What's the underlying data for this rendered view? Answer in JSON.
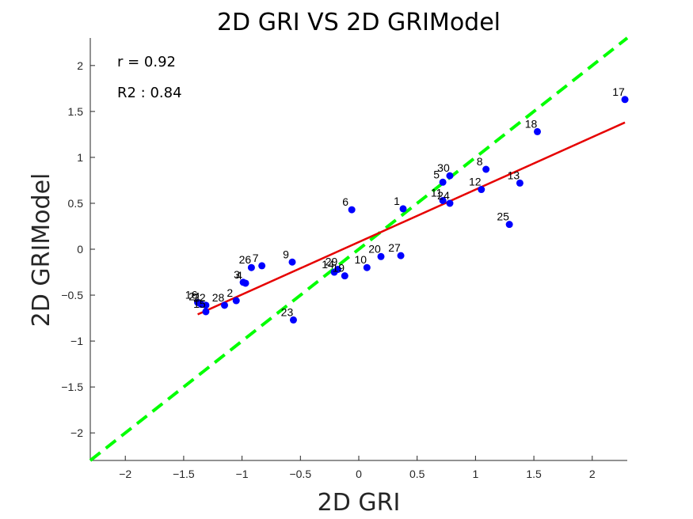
{
  "chart_data": {
    "type": "scatter",
    "title": "2D GRI VS 2D GRIModel",
    "xlabel": "2D GRI",
    "ylabel": "2D GRIModel",
    "xlim": [
      -2.3,
      2.3
    ],
    "ylim": [
      -2.3,
      2.3
    ],
    "xticks": [
      -2,
      -1.5,
      -1,
      -0.5,
      0,
      0.5,
      1,
      1.5,
      2
    ],
    "yticks": [
      -2,
      -1.5,
      -1,
      -0.5,
      0,
      0.5,
      1,
      1.5,
      2
    ],
    "xtick_labels": [
      "−2",
      "−1.5",
      "−1",
      "−0.5",
      "0",
      "0.5",
      "1",
      "1.5",
      "2"
    ],
    "ytick_labels": [
      "−2",
      "−1.5",
      "−1",
      "−0.5",
      "0",
      "0.5",
      "1",
      "1.5",
      "2"
    ],
    "grid": false,
    "annotations": [
      "r = 0.92",
      "R2 : 0.84"
    ],
    "point_color": "#0000ff",
    "points": [
      {
        "label": "1",
        "x": 0.38,
        "y": 0.44
      },
      {
        "label": "2",
        "x": -1.05,
        "y": -0.56
      },
      {
        "label": "3",
        "x": -0.99,
        "y": -0.36
      },
      {
        "label": "4",
        "x": -0.97,
        "y": -0.37
      },
      {
        "label": "5",
        "x": 0.72,
        "y": 0.73
      },
      {
        "label": "6",
        "x": -0.06,
        "y": 0.43
      },
      {
        "label": "7",
        "x": -0.83,
        "y": -0.18
      },
      {
        "label": "8",
        "x": 1.09,
        "y": 0.87
      },
      {
        "label": "9",
        "x": -0.57,
        "y": -0.14
      },
      {
        "label": "10",
        "x": 0.07,
        "y": -0.2
      },
      {
        "label": "11",
        "x": 0.72,
        "y": 0.53
      },
      {
        "label": "12",
        "x": 1.05,
        "y": 0.65
      },
      {
        "label": "13",
        "x": 1.38,
        "y": 0.72
      },
      {
        "label": "14",
        "x": -0.21,
        "y": -0.25
      },
      {
        "label": "15",
        "x": -1.31,
        "y": -0.68
      },
      {
        "label": "16",
        "x": -1.38,
        "y": -0.58
      },
      {
        "label": "17",
        "x": 2.28,
        "y": 1.63
      },
      {
        "label": "18",
        "x": 1.53,
        "y": 1.28
      },
      {
        "label": "19",
        "x": -0.12,
        "y": -0.29
      },
      {
        "label": "20",
        "x": 0.19,
        "y": -0.08
      },
      {
        "label": "21",
        "x": -1.35,
        "y": -0.6
      },
      {
        "label": "22",
        "x": -1.31,
        "y": -0.61
      },
      {
        "label": "23",
        "x": -0.56,
        "y": -0.77
      },
      {
        "label": "24",
        "x": 0.78,
        "y": 0.5
      },
      {
        "label": "25",
        "x": 1.29,
        "y": 0.27
      },
      {
        "label": "26",
        "x": -0.92,
        "y": -0.2
      },
      {
        "label": "27",
        "x": 0.36,
        "y": -0.07
      },
      {
        "label": "28",
        "x": -1.15,
        "y": -0.61
      },
      {
        "label": "29",
        "x": -0.18,
        "y": -0.22
      },
      {
        "label": "30",
        "x": 0.78,
        "y": 0.8
      }
    ],
    "fit_line": {
      "color": "#e60000",
      "x": [
        -1.38,
        2.28
      ],
      "y": [
        -0.71,
        1.38
      ]
    },
    "identity_line": {
      "color": "#00ff00",
      "style": "dashed",
      "x": [
        -2.3,
        2.3
      ],
      "y": [
        -2.3,
        2.3
      ]
    }
  }
}
